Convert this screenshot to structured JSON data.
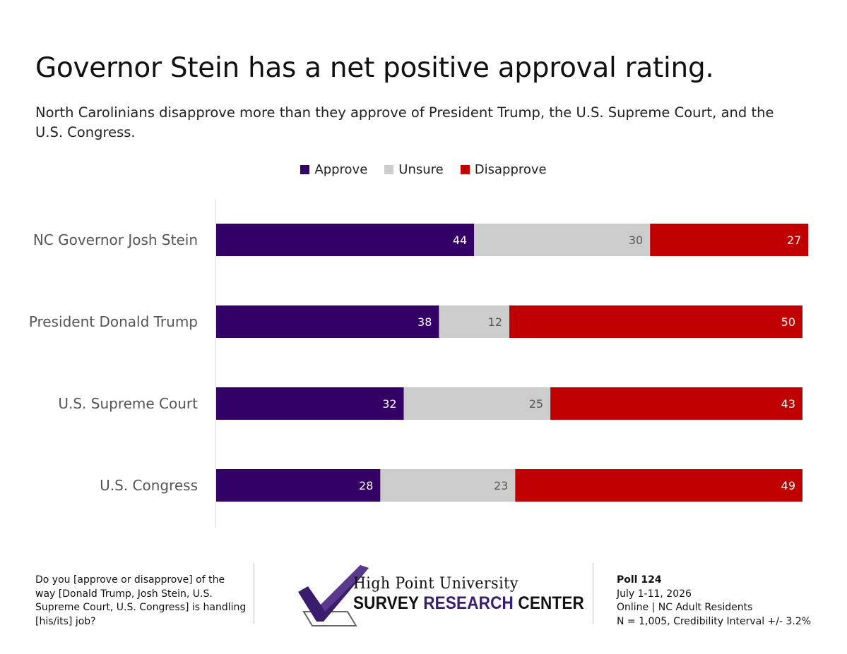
{
  "title": "Governor Stein has a net positive approval rating.",
  "subtitle": "North Carolinians disapprove more than they approve of President Trump, the U.S. Supreme Court, and the U.S. Congress.",
  "chart_data": {
    "type": "bar",
    "orientation": "horizontal",
    "stacked": true,
    "categories": [
      "NC Governor Josh Stein",
      "President Donald Trump",
      "U.S. Supreme Court",
      "U.S. Congress"
    ],
    "series": [
      {
        "name": "Approve",
        "color": "#330066",
        "label_color": "#ffffff",
        "values": [
          44,
          38,
          32,
          28
        ]
      },
      {
        "name": "Unsure",
        "color": "#cccccc",
        "label_color": "#595959",
        "values": [
          30,
          12,
          25,
          23
        ]
      },
      {
        "name": "Disapprove",
        "color": "#c00000",
        "label_color": "#ffffff",
        "values": [
          27,
          50,
          43,
          49
        ]
      }
    ],
    "xlim": [
      0,
      100
    ],
    "legend": "top-center",
    "grid": false
  },
  "footer": {
    "question": "Do you [approve or disapprove] of the way [Donald Trump, Josh Stein, U.S. Supreme Court, U.S. Congress] is handling [his/its] job?",
    "logo_line1": "High Point University",
    "logo_survey": "SURVEY ",
    "logo_research": "RESEARCH",
    "logo_center": " CENTER",
    "poll": "Poll 124",
    "dates": "July 1-11, 2026",
    "method": "Online | NC Adult Residents",
    "sample": "N = 1,005, Credibility Interval +/- 3.2%"
  },
  "colors": {
    "approve": "#330066",
    "unsure": "#cccccc",
    "disapprove": "#c00000",
    "brand_purple": "#3a1d6e"
  }
}
